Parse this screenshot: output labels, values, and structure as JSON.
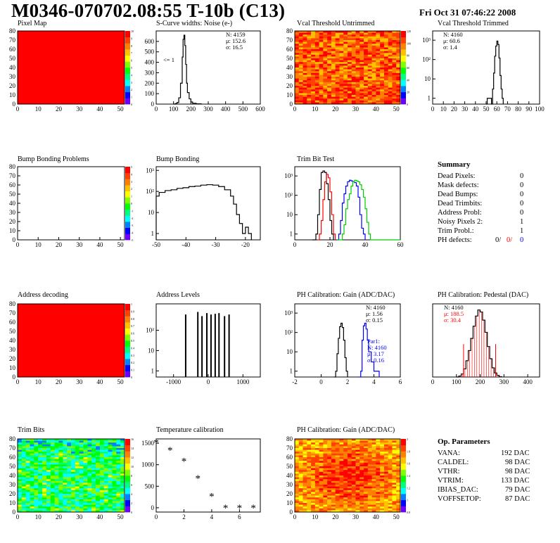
{
  "header": {
    "title": "M0346-070702.08:55 T-10b (C13)",
    "date": "Fri Oct 31 07:46:22 2008"
  },
  "colors": {
    "red": "#ff0000",
    "blue": "#0000ff",
    "green": "#00cc00",
    "black": "#000000",
    "palette": [
      "#6a00ff",
      "#0000ff",
      "#0080ff",
      "#00ffff",
      "#00ff80",
      "#00ff00",
      "#80ff00",
      "#ffff00",
      "#ffc000",
      "#ff8000",
      "#ff4000",
      "#ff0000"
    ]
  },
  "summary": {
    "title": "Summary",
    "rows": [
      {
        "label": "Dead Pixels:",
        "value": "0"
      },
      {
        "label": "Mask defects:",
        "value": "0"
      },
      {
        "label": "Dead Bumps:",
        "value": "0"
      },
      {
        "label": "Dead Trimbits:",
        "value": "0"
      },
      {
        "label": "Address Probl:",
        "value": "0"
      },
      {
        "label": "Noisy Pixels 2:",
        "value": "1"
      },
      {
        "label": "Trim Probl.:",
        "value": "1"
      }
    ],
    "ph_defects": {
      "label": "PH defects:",
      "v1": "0/",
      "v2": "0/",
      "v3": "0"
    }
  },
  "op_params": {
    "title": "Op. Parameters",
    "rows": [
      {
        "label": "VANA:",
        "value": "192 DAC"
      },
      {
        "label": "CALDEL:",
        "value": "98 DAC"
      },
      {
        "label": "VTHR:",
        "value": "98 DAC"
      },
      {
        "label": "VTRIM:",
        "value": "133 DAC"
      },
      {
        "label": "IBIAS_DAC:",
        "value": "79 DAC"
      },
      {
        "label": "VOFFSETOP:",
        "value": "87 DAC"
      }
    ]
  },
  "chart_data": [
    {
      "id": "pixel-map",
      "type": "heatmap",
      "title": "Pixel Map",
      "xlim": [
        0,
        52
      ],
      "ylim": [
        0,
        80
      ],
      "xticks": [
        "0",
        "10",
        "20",
        "30",
        "40",
        "50"
      ],
      "yticks": [
        "0",
        "10",
        "20",
        "30",
        "40",
        "50",
        "60",
        "70",
        "80"
      ],
      "fill": "uniform",
      "uniform_value": 10,
      "zticks": [
        "0",
        "1",
        "2",
        "3",
        "4",
        "5",
        "6",
        "7",
        "8",
        "9",
        "10"
      ]
    },
    {
      "id": "noise",
      "type": "histogram",
      "title": "S-Curve widths: Noise (e-)",
      "xlim": [
        0,
        600
      ],
      "ylim": [
        0,
        700
      ],
      "log": false,
      "xticks": [
        "0",
        "100",
        "200",
        "300",
        "400",
        "500",
        "600"
      ],
      "yticks": [
        "0",
        "100",
        "200",
        "300",
        "400",
        "500",
        "600"
      ],
      "stats": [
        "N: 4159",
        "μ: 152.6",
        "σ: 16.5"
      ],
      "annotation": "<= 1",
      "series": [
        {
          "color": "#000000",
          "x": [
            100,
            110,
            120,
            130,
            140,
            150,
            155,
            160,
            165,
            170,
            175,
            180,
            190,
            200,
            210,
            230,
            260
          ],
          "y": [
            0,
            5,
            15,
            60,
            200,
            450,
            620,
            660,
            560,
            380,
            200,
            110,
            50,
            20,
            8,
            3,
            0
          ]
        }
      ]
    },
    {
      "id": "vcal-untrimmed",
      "type": "heatmap",
      "title": "Vcal Threshold Untrimmed",
      "xlim": [
        0,
        52
      ],
      "ylim": [
        0,
        80
      ],
      "xticks": [
        "0",
        "10",
        "20",
        "30",
        "40",
        "50"
      ],
      "yticks": [
        "0",
        "10",
        "20",
        "30",
        "40",
        "50",
        "60",
        "70",
        "80"
      ],
      "fill": "noise-warm",
      "zticks": [
        "0",
        "20",
        "40",
        "60",
        "80",
        "100",
        "120"
      ]
    },
    {
      "id": "vcal-trimmed",
      "type": "histogram",
      "title": "Vcal Threshold Trimmed",
      "xlim": [
        0,
        100
      ],
      "ylim": [
        0.5,
        3000
      ],
      "log": true,
      "xticks": [
        "0",
        "10",
        "20",
        "30",
        "40",
        "50",
        "60",
        "70",
        "80",
        "90",
        "100"
      ],
      "yticks": [
        "1",
        "10",
        "10²",
        "10³"
      ],
      "stats": [
        "N: 4160",
        "μ: 60.6",
        "σ: 1.4"
      ],
      "series": [
        {
          "color": "#000000",
          "x": [
            50,
            51,
            55,
            56,
            57,
            58,
            59,
            60,
            61,
            62,
            63,
            64,
            65,
            66
          ],
          "y": [
            0,
            1,
            0,
            3,
            20,
            150,
            500,
            900,
            600,
            120,
            15,
            3,
            1,
            0
          ]
        }
      ]
    },
    {
      "id": "bump-problems",
      "type": "heatmap",
      "title": "Bump Bonding Problems",
      "xlim": [
        0,
        52
      ],
      "ylim": [
        0,
        80
      ],
      "xticks": [
        "0",
        "10",
        "20",
        "30",
        "40",
        "50"
      ],
      "yticks": [
        "0",
        "10",
        "20",
        "30",
        "40",
        "50",
        "60",
        "70",
        "80"
      ],
      "fill": "empty",
      "zticks": [
        "-5",
        "-4",
        "-3",
        "-2",
        "-1",
        "0",
        "1",
        "2",
        "3",
        "4",
        "5"
      ]
    },
    {
      "id": "bump-bonding",
      "type": "histogram",
      "title": "Bump Bonding",
      "xlim": [
        -50,
        -15
      ],
      "ylim": [
        0.5,
        1500
      ],
      "log": true,
      "xticks": [
        "-50",
        "-40",
        "-30",
        "-20"
      ],
      "yticks": [
        "1",
        "10",
        "10²",
        "10³"
      ],
      "series": [
        {
          "color": "#000000",
          "x": [
            -50,
            -49,
            -47,
            -45,
            -43,
            -41,
            -39,
            -37,
            -35,
            -33,
            -31,
            -29,
            -27,
            -25,
            -24,
            -23,
            -22,
            -21,
            -20,
            -19,
            -18
          ],
          "y": [
            60,
            90,
            110,
            120,
            140,
            150,
            170,
            180,
            200,
            210,
            200,
            170,
            120,
            60,
            25,
            8,
            3,
            1,
            2,
            1,
            0
          ]
        }
      ]
    },
    {
      "id": "trim-bit-test",
      "type": "histogram",
      "title": "Trim Bit Test",
      "xlim": [
        0,
        60
      ],
      "ylim": [
        0.5,
        3000
      ],
      "log": true,
      "xticks": [
        "0",
        "20",
        "40",
        "60"
      ],
      "yticks": [
        "1",
        "10",
        "10²",
        "10³"
      ],
      "series": [
        {
          "color": "#000000",
          "x": [
            10,
            12,
            13,
            14,
            15,
            16,
            17,
            18,
            19,
            20,
            21,
            22
          ],
          "y": [
            0,
            1,
            10,
            200,
            1500,
            1800,
            1500,
            400,
            60,
            5,
            1,
            0
          ]
        },
        {
          "color": "#ff0000",
          "x": [
            13,
            14,
            15,
            16,
            17,
            18,
            19,
            20,
            21,
            22,
            23
          ],
          "y": [
            0,
            1,
            5,
            60,
            500,
            1200,
            800,
            150,
            10,
            1,
            0
          ]
        },
        {
          "color": "#0000ff",
          "x": [
            24,
            25,
            26,
            27,
            28,
            29,
            30,
            31,
            32,
            33,
            34,
            35,
            36,
            37,
            38,
            39,
            40
          ],
          "y": [
            0,
            1,
            5,
            40,
            120,
            300,
            500,
            600,
            550,
            500,
            450,
            300,
            80,
            10,
            2,
            1,
            0
          ]
        },
        {
          "color": "#00cc00",
          "x": [
            24,
            25,
            27,
            28,
            29,
            30,
            31,
            32,
            33,
            34,
            35,
            36,
            37,
            38,
            39,
            40,
            41,
            42,
            43,
            44,
            45,
            60
          ],
          "y": [
            0,
            0,
            1,
            3,
            20,
            60,
            120,
            300,
            500,
            600,
            550,
            500,
            350,
            200,
            80,
            20,
            4,
            1,
            0,
            0,
            0,
            0
          ]
        }
      ]
    },
    {
      "id": "address-decoding",
      "type": "heatmap",
      "title": "Address decoding",
      "xlim": [
        0,
        52
      ],
      "ylim": [
        0,
        80
      ],
      "xticks": [
        "0",
        "10",
        "20",
        "30",
        "40",
        "50"
      ],
      "yticks": [
        "0",
        "10",
        "20",
        "30",
        "40",
        "50",
        "60",
        "70",
        "80"
      ],
      "fill": "uniform",
      "uniform_value": 1,
      "zticks": [
        "0",
        "0.1",
        "0.2",
        "0.3",
        "0.4",
        "0.5",
        "0.6",
        "0.7",
        "0.8",
        "0.9",
        "1"
      ]
    },
    {
      "id": "address-levels",
      "type": "histogram",
      "title": "Address Levels",
      "xlim": [
        -1500,
        1500
      ],
      "ylim": [
        0.5,
        2000
      ],
      "log": true,
      "xticks": [
        "-1000",
        "0",
        "1000"
      ],
      "yticks": [
        "1",
        "10",
        "10²"
      ],
      "spikes": [
        -650,
        -300,
        -180,
        -40,
        80,
        200,
        310,
        470,
        600
      ],
      "spike_heights": [
        600,
        800,
        500,
        700,
        600,
        650,
        700,
        500,
        600
      ]
    },
    {
      "id": "ph-gain",
      "type": "histogram",
      "title": "PH Calibration: Gain (ADC/DAC)",
      "xlim": [
        -2,
        6
      ],
      "ylim": [
        0.5,
        3000
      ],
      "log": true,
      "xticks": [
        "-2",
        "0",
        "2",
        "4",
        "6"
      ],
      "yticks": [
        "1",
        "10",
        "10²",
        "10³"
      ],
      "stats": [
        "N: 4160",
        "μ: 1.56",
        "σ: 0.15"
      ],
      "stats2": [
        "Par1:",
        "N: 4160",
        "μ: 3.17",
        "σ: 0.16"
      ],
      "series": [
        {
          "color": "#000000",
          "x": [
            1.0,
            1.1,
            1.2,
            1.3,
            1.4,
            1.5,
            1.6,
            1.7,
            1.8,
            1.9,
            2.0
          ],
          "y": [
            0,
            1,
            8,
            50,
            200,
            300,
            180,
            40,
            5,
            1,
            0
          ]
        },
        {
          "color": "#0000ff",
          "x": [
            2.9,
            3.0,
            3.1,
            3.2,
            3.3,
            3.4,
            3.5,
            3.6,
            3.8,
            4.0,
            4.4
          ],
          "y": [
            0,
            1,
            40,
            220,
            300,
            150,
            40,
            10,
            3,
            1,
            0
          ]
        }
      ]
    },
    {
      "id": "ph-pedestal",
      "type": "histogram",
      "title": "PH Calibration: Pedestal (DAC)",
      "xlim": [
        0,
        450
      ],
      "ylim": [
        0,
        360
      ],
      "log": false,
      "xticks": [
        "0",
        "100",
        "200",
        "300",
        "400"
      ],
      "yticks": [],
      "stats": [
        "N: 4160",
        "μ: 188.5",
        "σ: 30.4"
      ],
      "series": [
        {
          "color": "#000000",
          "x": [
            100,
            110,
            120,
            130,
            140,
            150,
            160,
            170,
            180,
            190,
            200,
            210,
            220,
            230,
            240,
            250,
            260,
            270,
            280,
            290
          ],
          "y": [
            0,
            5,
            15,
            40,
            80,
            130,
            190,
            250,
            300,
            330,
            320,
            280,
            220,
            150,
            90,
            45,
            20,
            8,
            2,
            0
          ]
        }
      ],
      "fit_lines": [
        130,
        265
      ]
    },
    {
      "id": "trim-bits",
      "type": "heatmap",
      "title": "Trim Bits",
      "xlim": [
        0,
        52
      ],
      "ylim": [
        0,
        80
      ],
      "xticks": [
        "0",
        "10",
        "20",
        "30",
        "40",
        "50"
      ],
      "yticks": [
        "0",
        "10",
        "20",
        "30",
        "40",
        "50",
        "60",
        "70",
        "80"
      ],
      "fill": "noise-green",
      "zticks": [
        "0",
        "2",
        "4",
        "6",
        "8",
        "10",
        "12",
        "14",
        "16"
      ]
    },
    {
      "id": "temperature",
      "type": "scatter",
      "title": "Temperature calibration",
      "xlim": [
        0,
        7.5
      ],
      "ylim": [
        -100,
        1600
      ],
      "xticks": [
        "0",
        "2",
        "4",
        "6"
      ],
      "yticks": [
        "0",
        "500",
        "1000",
        "1500"
      ],
      "x": [
        0,
        1,
        2,
        3,
        4,
        5,
        6,
        7
      ],
      "y": [
        1500,
        1320,
        1070,
        670,
        250,
        -20,
        -20,
        -20
      ]
    },
    {
      "id": "ph-gain-map",
      "type": "heatmap",
      "title": "PH Calibration: Gain (ADC/DAC)",
      "xlim": [
        0,
        52
      ],
      "ylim": [
        0,
        80
      ],
      "xticks": [
        "0",
        "10",
        "20",
        "30",
        "40",
        "50"
      ],
      "yticks": [
        "0",
        "10",
        "20",
        "30",
        "40",
        "50",
        "60",
        "70",
        "80"
      ],
      "fill": "noise-center",
      "zticks": [
        "0.8",
        "1",
        "1.2",
        "1.4",
        "1.6",
        "1.8",
        "2"
      ]
    }
  ]
}
